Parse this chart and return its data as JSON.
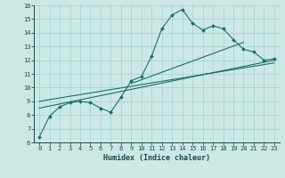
{
  "xlabel": "Humidex (Indice chaleur)",
  "bg_color": "#cce8e5",
  "grid_color": "#a8d4d0",
  "line_color": "#1a6e62",
  "xlim": [
    -0.5,
    23.5
  ],
  "ylim": [
    6,
    16
  ],
  "xticks": [
    0,
    1,
    2,
    3,
    4,
    5,
    6,
    7,
    8,
    9,
    10,
    11,
    12,
    13,
    14,
    15,
    16,
    17,
    18,
    19,
    20,
    21,
    22,
    23
  ],
  "yticks": [
    6,
    7,
    8,
    9,
    10,
    11,
    12,
    13,
    14,
    15,
    16
  ],
  "curve1_x": [
    0,
    1,
    2,
    3,
    4,
    5,
    6,
    7,
    8,
    9,
    10,
    11,
    12,
    13,
    14,
    15,
    16,
    17,
    18,
    19,
    20,
    21,
    22,
    23
  ],
  "curve1_y": [
    6.4,
    7.9,
    8.6,
    8.9,
    9.0,
    8.9,
    8.5,
    8.2,
    9.3,
    10.5,
    10.8,
    12.3,
    14.3,
    15.3,
    15.7,
    14.7,
    14.2,
    14.5,
    14.3,
    13.5,
    12.8,
    12.6,
    12.0,
    12.1
  ],
  "curve2_x": [
    0,
    23
  ],
  "curve2_y": [
    8.5,
    12.0
  ],
  "curve3_x": [
    0,
    23
  ],
  "curve3_y": [
    9.0,
    11.8
  ],
  "curve4_x": [
    9,
    20
  ],
  "curve4_y": [
    10.3,
    13.3
  ]
}
